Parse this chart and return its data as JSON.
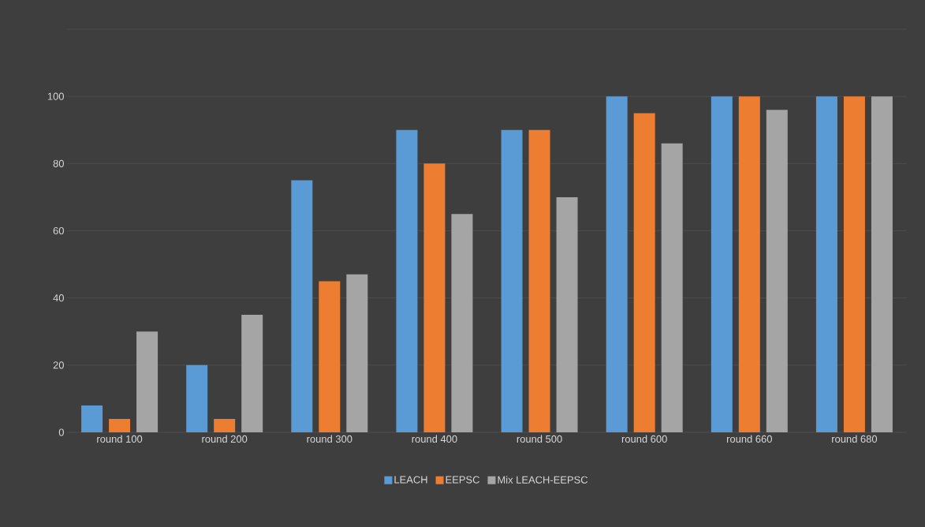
{
  "chart_data": {
    "type": "bar",
    "categories": [
      "round 100",
      "round 200",
      "round 300",
      "round 400",
      "round 500",
      "round 600",
      "round 660",
      "round 680"
    ],
    "series": [
      {
        "name": "LEACH",
        "color": "#5b9bd5",
        "values": [
          8,
          20,
          75,
          90,
          90,
          100,
          100,
          100
        ]
      },
      {
        "name": "EEPSC",
        "color": "#ed7d31",
        "values": [
          4,
          4,
          45,
          80,
          90,
          95,
          100,
          100
        ]
      },
      {
        "name": "Mix LEACH-EEPSC",
        "color": "#a5a5a5",
        "values": [
          30,
          35,
          47,
          65,
          70,
          86,
          96,
          100
        ]
      }
    ],
    "ylim": [
      0,
      120
    ],
    "yticks": [
      0,
      20,
      40,
      60,
      80,
      100,
      {
        "value": 120,
        "label": null
      }
    ],
    "grid": "y",
    "legend": "bottom"
  }
}
